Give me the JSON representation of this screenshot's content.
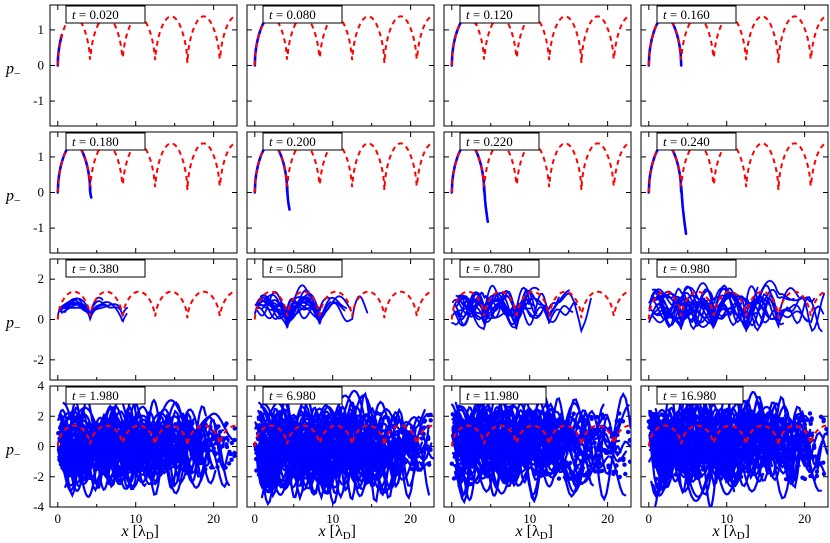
{
  "chart_data": {
    "type": "scatter",
    "ylabel_main": "p",
    "ylabel_sub": "−",
    "xlabel_main": "x",
    "xlabel_unit": "λ",
    "xlabel_unit_sub": "D",
    "xlim": [
      -1,
      23
    ],
    "xticks": [
      0,
      10,
      20
    ],
    "reference_curve": {
      "name": "separatrix",
      "style": "dashed",
      "color": "#ff0000"
    },
    "particle_color": "#0000ff",
    "rows": [
      {
        "ylim": [
          -1.7,
          1.7
        ],
        "yticks": [
          "-1",
          "0",
          "1"
        ]
      },
      {
        "ylim": [
          -1.7,
          1.7
        ],
        "yticks": [
          "-1",
          "0",
          "1"
        ]
      },
      {
        "ylim": [
          -3,
          3
        ],
        "yticks": [
          "-2",
          "0",
          "2"
        ]
      },
      {
        "ylim": [
          -4,
          4
        ],
        "yticks": [
          "-4",
          "-2",
          "0",
          "2",
          "4"
        ]
      }
    ],
    "panels": [
      {
        "t_label": "t = 0.020",
        "t": 0.02,
        "spread": 0.0
      },
      {
        "t_label": "t = 0.080",
        "t": 0.08,
        "spread": 0.0
      },
      {
        "t_label": "t = 0.120",
        "t": 0.12,
        "spread": 0.0
      },
      {
        "t_label": "t = 0.160",
        "t": 0.16,
        "spread": 0.0
      },
      {
        "t_label": "t = 0.180",
        "t": 0.18,
        "spread": 0.0
      },
      {
        "t_label": "t = 0.200",
        "t": 0.2,
        "spread": 0.0
      },
      {
        "t_label": "t = 0.220",
        "t": 0.22,
        "spread": 0.0
      },
      {
        "t_label": "t = 0.240",
        "t": 0.24,
        "spread": 0.0
      },
      {
        "t_label": "t = 0.380",
        "t": 0.38,
        "spread": 0.2
      },
      {
        "t_label": "t = 0.580",
        "t": 0.58,
        "spread": 0.45
      },
      {
        "t_label": "t = 0.780",
        "t": 0.78,
        "spread": 0.6
      },
      {
        "t_label": "t = 0.980",
        "t": 0.98,
        "spread": 0.75
      },
      {
        "t_label": "t = 1.980",
        "t": 1.98,
        "spread": 0.9
      },
      {
        "t_label": "t = 6.980",
        "t": 6.98,
        "spread": 1.0
      },
      {
        "t_label": "t = 11.980",
        "t": 11.98,
        "spread": 1.0
      },
      {
        "t_label": "t = 16.980",
        "t": 16.98,
        "spread": 1.0
      }
    ]
  }
}
